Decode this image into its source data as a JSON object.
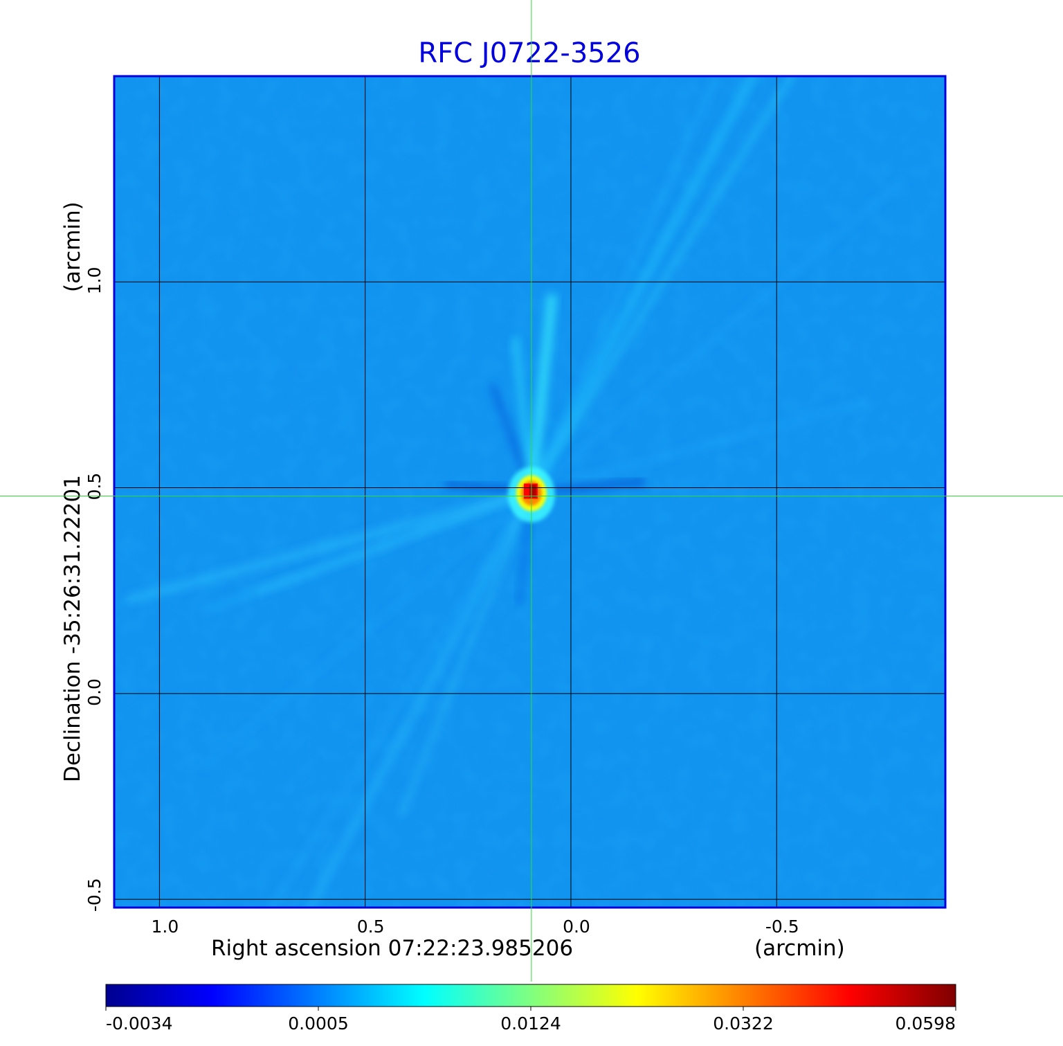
{
  "chart_data": {
    "type": "heatmap",
    "title": "RFC J0722-3526",
    "xlabel": "Right ascension  07:22:23.985206",
    "xunit": "(arcmin)",
    "ylabel": "Declination  -35:26:31.22201",
    "yunit": "(arcmin)",
    "x_ticks": [
      1.0,
      0.5,
      0.0,
      -0.5
    ],
    "x_tick_labels": [
      "1.0",
      "0.5",
      "0.0",
      "-0.5"
    ],
    "y_ticks": [
      1.0,
      0.5,
      0.0,
      -0.5
    ],
    "y_tick_labels": [
      "1.0",
      "0.5",
      "0.0",
      "-0.5"
    ],
    "xlim": [
      1.11,
      -0.91
    ],
    "ylim": [
      -0.52,
      1.5
    ],
    "grid": true,
    "crosshair": {
      "x": 0.096,
      "y": 0.48,
      "color": "#33dd33"
    },
    "peak": {
      "x": 0.096,
      "y": 0.49,
      "value": 0.0598
    },
    "colorbar": {
      "tick_labels": [
        "-0.0034",
        "0.0005",
        "0.0124",
        "0.0322",
        "0.0598"
      ],
      "colors": [
        "#00008f",
        "#0000ff",
        "#0080ff",
        "#00ffff",
        "#80ff80",
        "#ffff00",
        "#ff8000",
        "#ff0000",
        "#800000"
      ]
    },
    "colors": {
      "title": "#0000dd",
      "frame": "#0000dd",
      "background_map": "#1193f0",
      "grid": "#000000"
    }
  }
}
